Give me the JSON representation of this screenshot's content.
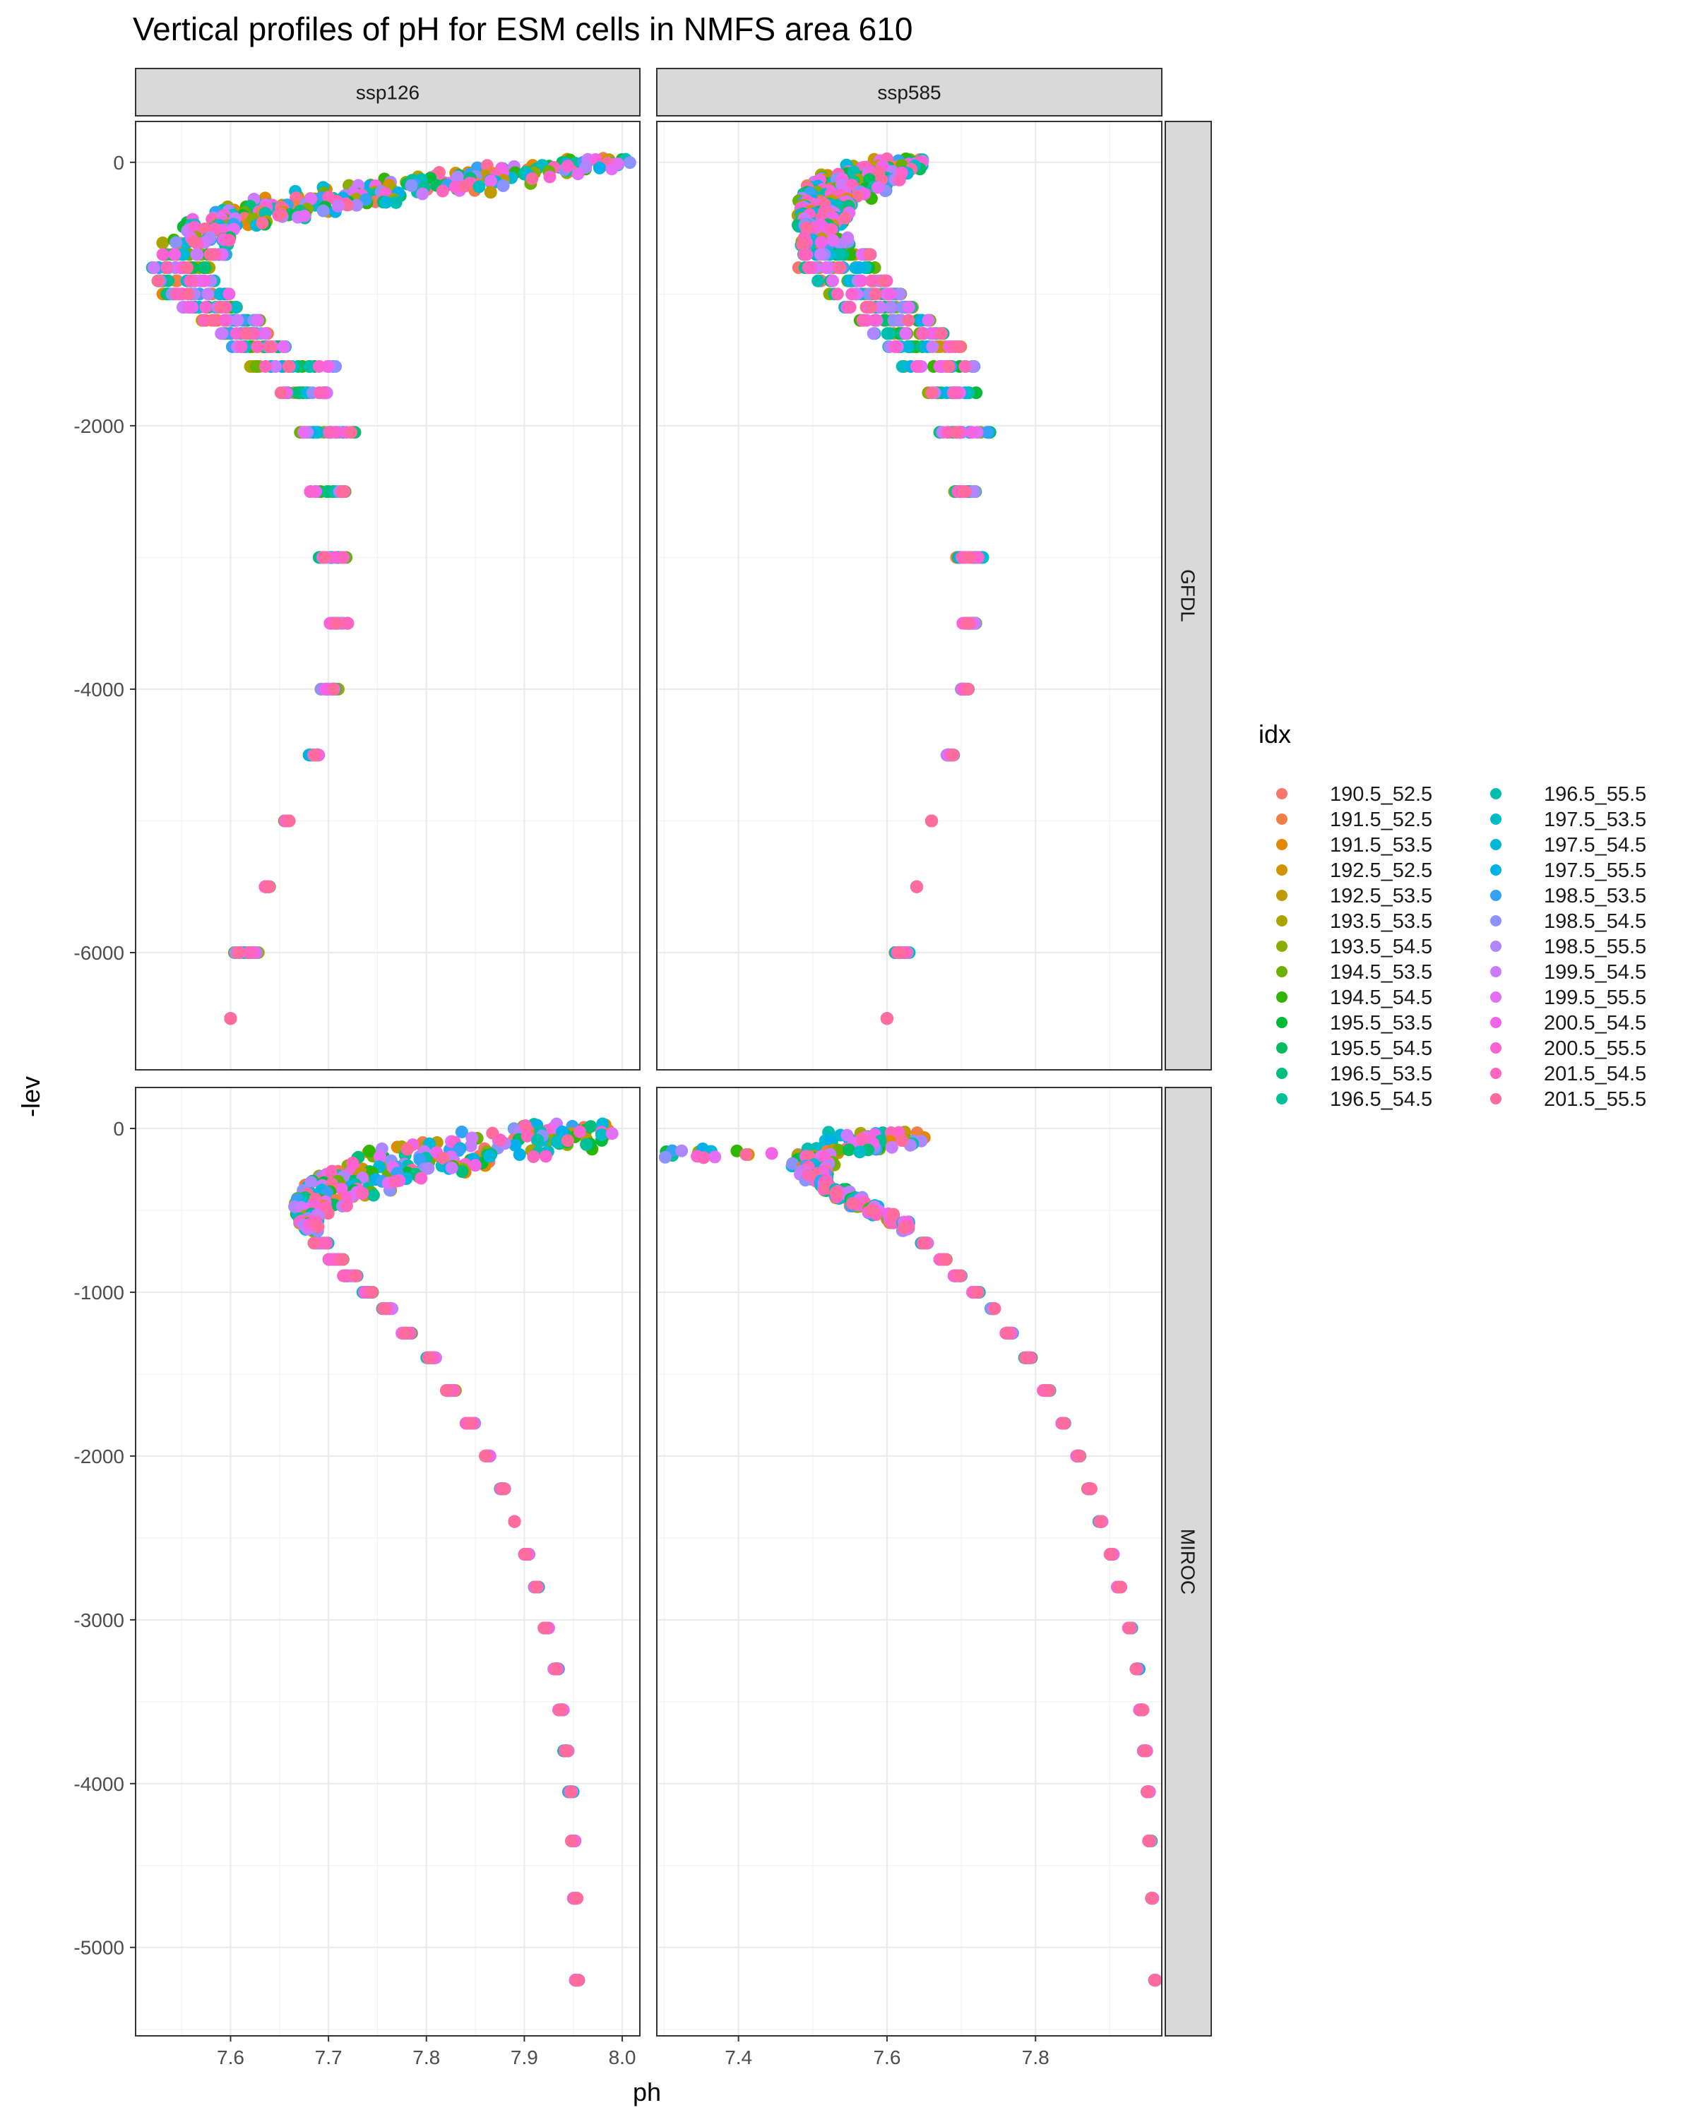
{
  "chart_data": {
    "type": "scatter",
    "title": "Vertical profiles of pH for ESM cells in NMFS area 610",
    "xlabel": "ph",
    "ylabel": "-lev",
    "facet_columns": [
      "ssp126",
      "ssp585"
    ],
    "facet_rows": [
      "GFDL",
      "MIROC"
    ],
    "x_ticks": {
      "ssp126": [
        7.6,
        7.7,
        7.8,
        7.9,
        8.0
      ],
      "ssp585": [
        7.4,
        7.6,
        7.8
      ]
    },
    "x_tick_labels": {
      "ssp126": [
        "7.6",
        "7.7",
        "7.8",
        "7.9",
        "8.0"
      ],
      "ssp585": [
        "7.4",
        "7.6",
        "7.8"
      ]
    },
    "y_ticks": {
      "GFDL": [
        0,
        -2000,
        -4000,
        -6000
      ],
      "MIROC": [
        0,
        -1000,
        -2000,
        -3000,
        -4000,
        -5000
      ]
    },
    "y_tick_labels": {
      "GFDL": [
        "0",
        "-2000",
        "-4000",
        "-6000"
      ],
      "MIROC": [
        "0",
        "-1000",
        "-2000",
        "-3000",
        "-4000",
        "-5000"
      ]
    },
    "xlim": {
      "ssp126": [
        7.503,
        8.018
      ],
      "ssp585": [
        7.29,
        7.97
      ]
    },
    "ylim": {
      "GFDL": [
        -6890,
        310
      ],
      "MIROC": [
        -5540,
        250
      ]
    },
    "grid": true,
    "legend_title": "idx",
    "legend_position": "right",
    "legend": [
      {
        "name": "190.5_52.5",
        "color": "#F8766D"
      },
      {
        "name": "191.5_52.5",
        "color": "#EF7F45"
      },
      {
        "name": "191.5_53.5",
        "color": "#E38900"
      },
      {
        "name": "192.5_52.5",
        "color": "#D39200"
      },
      {
        "name": "192.5_53.5",
        "color": "#C09B00"
      },
      {
        "name": "193.5_53.5",
        "color": "#A9A400"
      },
      {
        "name": "193.5_54.5",
        "color": "#8EAB00"
      },
      {
        "name": "194.5_53.5",
        "color": "#6BB100"
      },
      {
        "name": "194.5_54.5",
        "color": "#31B600"
      },
      {
        "name": "195.5_53.5",
        "color": "#00BA38"
      },
      {
        "name": "195.5_54.5",
        "color": "#00BD5F"
      },
      {
        "name": "196.5_53.5",
        "color": "#00BF7D"
      },
      {
        "name": "196.5_54.5",
        "color": "#00C097"
      },
      {
        "name": "196.5_55.5",
        "color": "#00BFAF"
      },
      {
        "name": "197.5_53.5",
        "color": "#00BCC4"
      },
      {
        "name": "197.5_54.5",
        "color": "#00B8D7"
      },
      {
        "name": "197.5_55.5",
        "color": "#00B0E8"
      },
      {
        "name": "198.5_53.5",
        "color": "#35A2F5"
      },
      {
        "name": "198.5_54.5",
        "color": "#8B93FF"
      },
      {
        "name": "198.5_55.5",
        "color": "#AE86FF"
      },
      {
        "name": "199.5_54.5",
        "color": "#CB7BFF"
      },
      {
        "name": "199.5_55.5",
        "color": "#E46EF6"
      },
      {
        "name": "200.5_54.5",
        "color": "#F365E6"
      },
      {
        "name": "200.5_55.5",
        "color": "#FC63D2"
      },
      {
        "name": "201.5_54.5",
        "color": "#FF65BA"
      },
      {
        "name": "201.5_55.5",
        "color": "#FF6C9D"
      }
    ],
    "profiles": {
      "GFDL_ssp126": {
        "depth": [
          0,
          -50,
          -100,
          -150,
          -200,
          -250,
          -300,
          -350,
          -400,
          -450,
          -500,
          -600,
          -700,
          -800,
          -900,
          -1000,
          -1100,
          -1200,
          -1300,
          -1400,
          -1550,
          -1750,
          -2050,
          -2500,
          -3000,
          -3500,
          -4000,
          -4500,
          -5000,
          -5500,
          -6000,
          -6500
        ],
        "ph_min": [
          7.93,
          7.85,
          7.79,
          7.74,
          7.69,
          7.66,
          7.62,
          7.59,
          7.57,
          7.555,
          7.545,
          7.53,
          7.525,
          7.52,
          7.525,
          7.53,
          7.55,
          7.57,
          7.59,
          7.6,
          7.62,
          7.65,
          7.67,
          7.68,
          7.69,
          7.7,
          7.69,
          7.68,
          7.655,
          7.635,
          7.6,
          7.6
        ],
        "ph_max": [
          8.01,
          7.99,
          7.96,
          7.92,
          7.87,
          7.8,
          7.77,
          7.72,
          7.68,
          7.64,
          7.61,
          7.6,
          7.6,
          7.58,
          7.59,
          7.6,
          7.61,
          7.63,
          7.64,
          7.66,
          7.71,
          7.7,
          7.73,
          7.72,
          7.72,
          7.72,
          7.71,
          7.69,
          7.66,
          7.64,
          7.63,
          7.6
        ]
      },
      "GFDL_ssp585": {
        "depth": [
          0,
          -50,
          -100,
          -150,
          -200,
          -250,
          -300,
          -350,
          -400,
          -450,
          -500,
          -600,
          -700,
          -800,
          -900,
          -1000,
          -1100,
          -1200,
          -1300,
          -1400,
          -1550,
          -1750,
          -2050,
          -2500,
          -3000,
          -3500,
          -4000,
          -4500,
          -5000,
          -5500,
          -6000,
          -6500
        ],
        "ph_min": [
          7.58,
          7.54,
          7.51,
          7.5,
          7.49,
          7.485,
          7.48,
          7.48,
          7.48,
          7.48,
          7.48,
          7.48,
          7.48,
          7.48,
          7.5,
          7.52,
          7.54,
          7.56,
          7.58,
          7.6,
          7.62,
          7.65,
          7.67,
          7.69,
          7.69,
          7.7,
          7.7,
          7.68,
          7.66,
          7.64,
          7.61,
          7.6
        ],
        "ph_max": [
          7.65,
          7.65,
          7.63,
          7.62,
          7.6,
          7.58,
          7.56,
          7.55,
          7.55,
          7.55,
          7.53,
          7.55,
          7.58,
          7.59,
          7.6,
          7.62,
          7.64,
          7.66,
          7.68,
          7.7,
          7.72,
          7.72,
          7.74,
          7.72,
          7.73,
          7.72,
          7.71,
          7.69,
          7.66,
          7.64,
          7.63,
          7.6
        ]
      },
      "MIROC_ssp126": {
        "depth": [
          0,
          -50,
          -100,
          -150,
          -200,
          -250,
          -300,
          -350,
          -400,
          -450,
          -500,
          -550,
          -600,
          -700,
          -800,
          -900,
          -1000,
          -1100,
          -1250,
          -1400,
          -1600,
          -1800,
          -2000,
          -2200,
          -2400,
          -2600,
          -2800,
          -3050,
          -3300,
          -3550,
          -3800,
          -4050,
          -4350,
          -4700,
          -5200
        ],
        "ph_min": [
          7.88,
          7.82,
          7.77,
          7.73,
          7.71,
          7.7,
          7.685,
          7.675,
          7.67,
          7.665,
          7.665,
          7.67,
          7.675,
          7.685,
          7.7,
          7.715,
          7.735,
          7.755,
          7.775,
          7.8,
          7.82,
          7.84,
          7.86,
          7.875,
          7.89,
          7.9,
          7.91,
          7.92,
          7.93,
          7.935,
          7.94,
          7.945,
          7.948,
          7.95,
          7.952
        ],
        "ph_max": [
          7.99,
          7.99,
          7.97,
          7.93,
          7.88,
          7.84,
          7.8,
          7.77,
          7.75,
          7.72,
          7.7,
          7.69,
          7.69,
          7.7,
          7.715,
          7.73,
          7.745,
          7.765,
          7.785,
          7.81,
          7.83,
          7.85,
          7.865,
          7.88,
          7.89,
          7.905,
          7.915,
          7.925,
          7.935,
          7.94,
          7.945,
          7.95,
          7.952,
          7.954,
          7.956
        ]
      },
      "MIROC_ssp585": {
        "depth": [
          -50,
          -100,
          -150,
          -200,
          -250,
          -300,
          -350,
          -400,
          -450,
          -500,
          -550,
          -600,
          -700,
          -800,
          -900,
          -1000,
          -1100,
          -1250,
          -1400,
          -1600,
          -1800,
          -2000,
          -2200,
          -2400,
          -2600,
          -2800,
          -3050,
          -3300,
          -3550,
          -3800,
          -4050,
          -4350,
          -4700,
          -5200
        ],
        "ph_min": [
          7.52,
          7.5,
          7.3,
          7.47,
          7.48,
          7.49,
          7.51,
          7.53,
          7.55,
          7.575,
          7.6,
          7.62,
          7.645,
          7.67,
          7.69,
          7.715,
          7.74,
          7.76,
          7.785,
          7.81,
          7.835,
          7.855,
          7.87,
          7.885,
          7.9,
          7.91,
          7.925,
          7.935,
          7.94,
          7.945,
          7.95,
          7.952,
          7.956,
          7.96
        ],
        "ph_max": [
          7.66,
          7.64,
          7.58,
          7.53,
          7.52,
          7.52,
          7.53,
          7.55,
          7.57,
          7.59,
          7.61,
          7.63,
          7.655,
          7.68,
          7.7,
          7.725,
          7.745,
          7.77,
          7.795,
          7.82,
          7.84,
          7.86,
          7.875,
          7.89,
          7.905,
          7.915,
          7.93,
          7.94,
          7.945,
          7.95,
          7.954,
          7.956,
          7.958,
          7.962
        ]
      }
    }
  }
}
